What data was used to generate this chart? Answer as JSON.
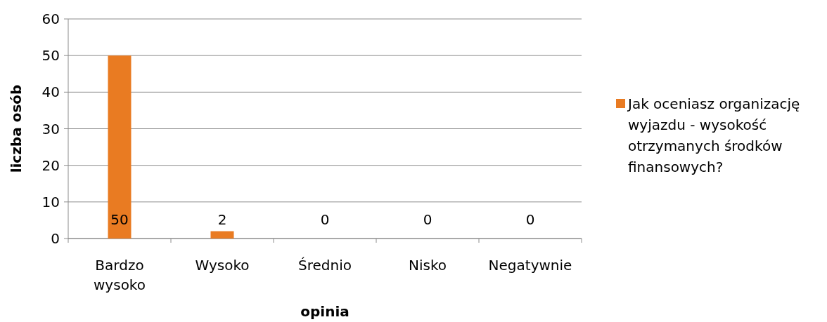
{
  "chart_data": {
    "type": "bar",
    "xlabel": "opinia",
    "ylabel": "liczba osób",
    "categories": [
      "Bardzo wysoko",
      "Wysoko",
      "Średnio",
      "Nisko",
      "Negatywnie"
    ],
    "series": [
      {
        "name": "Jak oceniasz organizację wyjazdu - wysokość otrzymanych środków finansowych?",
        "color": "#e97b22",
        "values": [
          50,
          2,
          0,
          0,
          0
        ]
      }
    ],
    "ylim": [
      0,
      60
    ],
    "yticks": [
      0,
      10,
      20,
      30,
      40,
      50,
      60
    ],
    "grid": "y",
    "legend": "right",
    "data_labels": true
  }
}
